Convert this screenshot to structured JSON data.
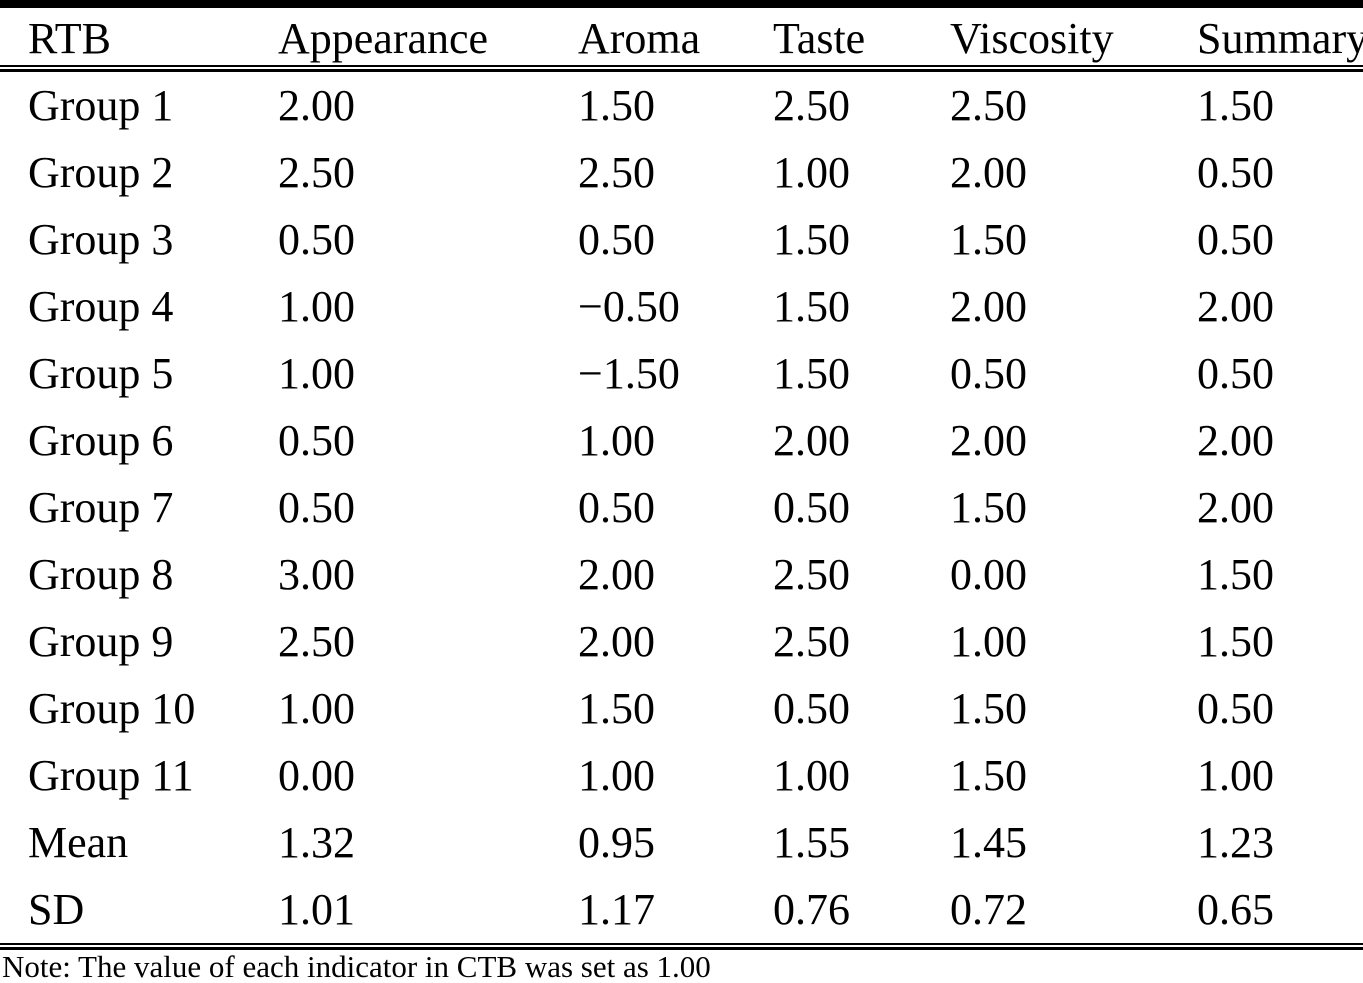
{
  "table": {
    "columns": [
      "RTB",
      "Appearance",
      "Aroma",
      "Taste",
      "Viscosity",
      "Summary"
    ],
    "rows": [
      {
        "label": "Group 1",
        "values": [
          "2.00",
          "1.50",
          "2.50",
          "2.50",
          "1.50"
        ]
      },
      {
        "label": "Group 2",
        "values": [
          "2.50",
          "2.50",
          "1.00",
          "2.00",
          "0.50"
        ]
      },
      {
        "label": "Group 3",
        "values": [
          "0.50",
          "0.50",
          "1.50",
          "1.50",
          "0.50"
        ]
      },
      {
        "label": "Group 4",
        "values": [
          "1.00",
          "−0.50",
          "1.50",
          "2.00",
          "2.00"
        ]
      },
      {
        "label": "Group 5",
        "values": [
          "1.00",
          "−1.50",
          "1.50",
          "0.50",
          "0.50"
        ]
      },
      {
        "label": "Group 6",
        "values": [
          "0.50",
          "1.00",
          "2.00",
          "2.00",
          "2.00"
        ]
      },
      {
        "label": "Group 7",
        "values": [
          "0.50",
          "0.50",
          "0.50",
          "1.50",
          "2.00"
        ]
      },
      {
        "label": "Group 8",
        "values": [
          "3.00",
          "2.00",
          "2.50",
          "0.00",
          "1.50"
        ]
      },
      {
        "label": "Group 9",
        "values": [
          "2.50",
          "2.00",
          "2.50",
          "1.00",
          "1.50"
        ]
      },
      {
        "label": "Group 10",
        "values": [
          "1.00",
          "1.50",
          "0.50",
          "1.50",
          "0.50"
        ]
      },
      {
        "label": "Group 11",
        "values": [
          "0.00",
          "1.00",
          "1.00",
          "1.50",
          "1.00"
        ]
      },
      {
        "label": "Mean",
        "values": [
          "1.32",
          "0.95",
          "1.55",
          "1.45",
          "1.23"
        ]
      },
      {
        "label": "SD",
        "values": [
          "1.01",
          "1.17",
          "0.76",
          "0.72",
          "0.65"
        ]
      }
    ],
    "note": "Note: The value of each indicator in CTB was set as 1.00",
    "colors": {
      "text": "#000000",
      "background": "#ffffff",
      "rule": "#000000"
    }
  }
}
